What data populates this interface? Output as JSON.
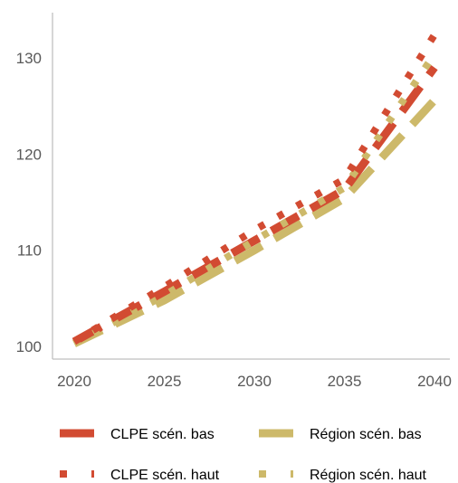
{
  "chart_data": {
    "type": "line",
    "title": "",
    "xlabel": "",
    "ylabel": "",
    "xlim": [
      2020,
      2040
    ],
    "ylim": [
      99,
      135
    ],
    "x_ticks": [
      2020,
      2025,
      2030,
      2035,
      2040
    ],
    "y_ticks": [
      100,
      110,
      120,
      130
    ],
    "x_tick_labels": [
      "2020",
      "2025",
      "2030",
      "2035",
      "2040"
    ],
    "y_tick_labels": [
      "100",
      "110",
      "120",
      "130"
    ],
    "grid": false,
    "legend_position": "bottom",
    "series": [
      {
        "name": "CLPE scén. bas",
        "color": "#d24b32",
        "style": "dash",
        "x": [
          2020,
          2025,
          2030,
          2035,
          2040
        ],
        "values": [
          100.5,
          105.7,
          111.0,
          116.3,
          129.0
        ]
      },
      {
        "name": "Région scén. bas",
        "color": "#cdb96a",
        "style": "dash",
        "x": [
          2020,
          2025,
          2030,
          2035,
          2040
        ],
        "values": [
          100.3,
          104.8,
          110.0,
          115.4,
          125.6
        ]
      },
      {
        "name": "CLPE scén. haut",
        "color": "#d24b32",
        "style": "dot",
        "x": [
          2020,
          2025,
          2030,
          2035,
          2040
        ],
        "values": [
          100.5,
          106.2,
          112.1,
          117.4,
          132.4
        ]
      },
      {
        "name": "Région scén. haut",
        "color": "#cdb96a",
        "style": "dot",
        "x": [
          2020,
          2025,
          2030,
          2035,
          2040
        ],
        "values": [
          100.3,
          105.3,
          111.0,
          116.5,
          130.4
        ]
      }
    ]
  }
}
